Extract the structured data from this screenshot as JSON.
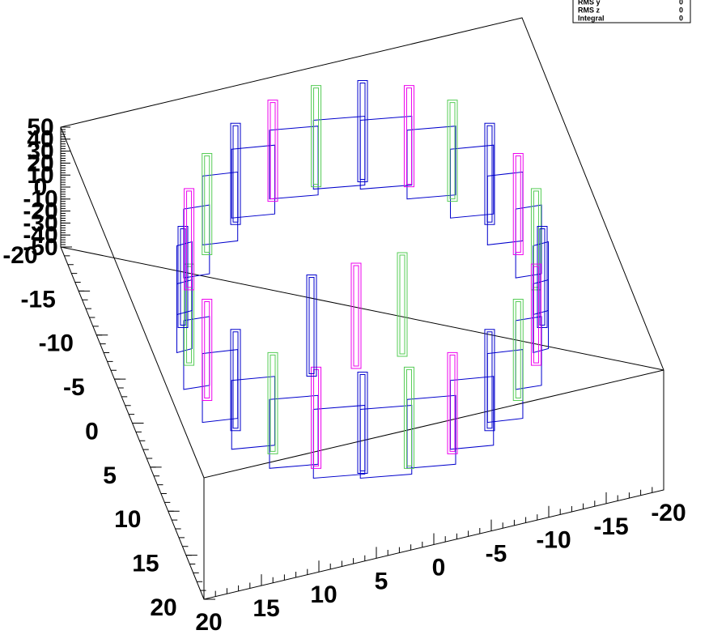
{
  "stats": {
    "rows": [
      [
        "RMS y",
        "0"
      ],
      [
        "RMS z",
        "0"
      ],
      [
        "Integral",
        "0"
      ]
    ]
  },
  "x_axis": {
    "ticks": [
      "20",
      "15",
      "10",
      "5",
      "0",
      "-5",
      "-10",
      "-15",
      "-20"
    ]
  },
  "y_axis": {
    "ticks": [
      "-20",
      "-15",
      "-10",
      "-5",
      "0",
      "5",
      "10",
      "15",
      "20"
    ]
  },
  "z_axis": {
    "ticks": [
      "50",
      "40",
      "30",
      "20",
      "10",
      "0",
      "-10",
      "-20",
      "-30",
      "-40",
      "-50"
    ]
  }
}
